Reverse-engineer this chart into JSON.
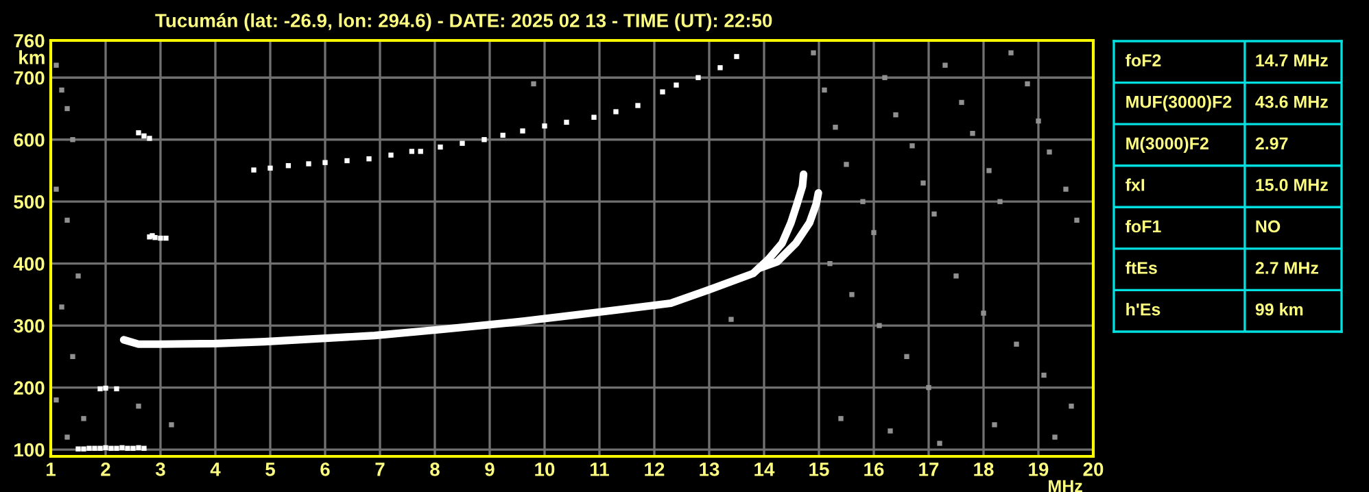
{
  "chart_data": [
    {
      "type": "scatter",
      "title": "Tucumán (lat: -26.9, lon: 294.6) - DATE: 2025 02 13 - TIME (UT): 22:50",
      "xlabel": "MHz",
      "ylabel": "km",
      "xlim": [
        1,
        20
      ],
      "ylim": [
        89,
        760
      ],
      "xticks": [
        1,
        2,
        3,
        4,
        5,
        6,
        7,
        8,
        9,
        10,
        11,
        12,
        13,
        14,
        15,
        16,
        17,
        18,
        19,
        20
      ],
      "yticks": [
        100,
        200,
        300,
        400,
        500,
        600,
        700,
        760
      ],
      "grid": true,
      "marker": "square",
      "series": [
        {
          "type": "line",
          "marker": "none",
          "color": "#ffffff",
          "x": [
            2.33,
            2.6,
            3.0,
            4.0,
            4.9,
            6.9,
            8.15,
            9.4,
            10.65,
            11.3,
            12.3,
            13.0,
            13.8,
            14.08,
            14.33,
            14.49,
            14.6,
            14.7,
            14.72
          ],
          "values": [
            277,
            270,
            270,
            271,
            274,
            284,
            294,
            305,
            318,
            325,
            336,
            358,
            384,
            407,
            433,
            466,
            496,
            525,
            544
          ]
        },
        {
          "type": "line",
          "marker": "none",
          "color": "#ffffff",
          "x": [
            13.9,
            14.24,
            14.58,
            14.83,
            14.95,
            14.99
          ],
          "values": [
            392,
            403,
            433,
            466,
            496,
            514
          ]
        },
        {
          "type": "scatter",
          "color": "#ffffff",
          "x": [
            4.7,
            5.0,
            5.33,
            5.7,
            6.0,
            6.4,
            6.8,
            7.2,
            7.58,
            7.74,
            8.1,
            8.5,
            8.9,
            9.24,
            9.6,
            10.0,
            10.4,
            10.9,
            11.3,
            11.7,
            12.15,
            12.4,
            12.8,
            13.2,
            13.5
          ],
          "values": [
            551,
            554,
            558,
            561,
            563,
            566,
            569,
            575,
            581,
            581,
            588,
            594,
            600,
            607,
            614,
            622,
            628,
            636,
            645,
            655,
            677,
            688,
            700,
            716,
            734
          ]
        },
        {
          "type": "scatter",
          "color": "#ffffff",
          "x": [
            1.5,
            1.6,
            1.7,
            1.8,
            1.9,
            2.0,
            2.1,
            2.2,
            2.3,
            2.4,
            2.5,
            2.6,
            2.7,
            2.8,
            2.85,
            2.9,
            3.0,
            3.1,
            2.6,
            2.7,
            2.8,
            1.9,
            2.0,
            2.2
          ],
          "values": [
            101,
            101,
            102,
            102,
            102,
            103,
            102,
            102,
            103,
            102,
            102,
            103,
            102,
            443,
            445,
            442,
            441,
            441,
            611,
            606,
            602,
            198,
            199,
            198
          ]
        },
        {
          "type": "scatter",
          "color": "#909090",
          "x": [
            1.1,
            1.2,
            1.3,
            1.4,
            1.1,
            1.3,
            1.5,
            1.2,
            1.4,
            1.1,
            1.6,
            1.3,
            2.6,
            3.2,
            14.9,
            15.1,
            15.3,
            15.5,
            15.8,
            16.0,
            16.2,
            16.4,
            16.7,
            16.9,
            17.1,
            17.3,
            17.6,
            17.8,
            18.1,
            18.3,
            18.5,
            18.8,
            19.0,
            19.2,
            19.5,
            19.7,
            15.2,
            15.6,
            16.1,
            16.6,
            17.0,
            17.5,
            18.0,
            18.6,
            19.1,
            19.6,
            15.4,
            16.3,
            17.2,
            18.2,
            19.3,
            9.8,
            13.4
          ],
          "values": [
            720,
            680,
            650,
            600,
            520,
            470,
            380,
            330,
            250,
            180,
            150,
            120,
            170,
            140,
            740,
            680,
            620,
            560,
            500,
            450,
            700,
            640,
            590,
            530,
            480,
            720,
            660,
            610,
            550,
            500,
            740,
            690,
            630,
            580,
            520,
            470,
            400,
            350,
            300,
            250,
            200,
            380,
            320,
            270,
            220,
            170,
            150,
            130,
            110,
            140,
            120,
            690,
            310
          ]
        }
      ]
    },
    {
      "type": "other",
      "annotations": [
        "foF2",
        "14.7 MHz",
        "MUF(3000)F2",
        "43.6 MHz",
        "M(3000)F2",
        "2.97",
        "fxI",
        "15.0 MHz",
        "foF1",
        "NO",
        "ftEs",
        "2.7 MHz",
        "h'Es",
        "99 km"
      ]
    }
  ]
}
